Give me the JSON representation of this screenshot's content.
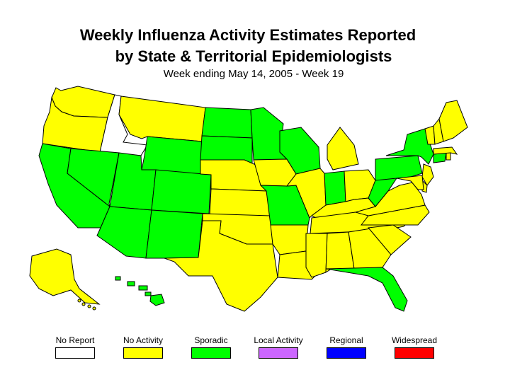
{
  "title": {
    "line1": "Weekly Influenza Activity Estimates Reported",
    "line2": "by State & Territorial Epidemiologists",
    "subtitle": "Week ending May 14, 2005 - Week 19"
  },
  "colors": {
    "no_report": "#ffffff",
    "no_activity": "#ffff00",
    "sporadic": "#00ff00",
    "local": "#cc66ff",
    "regional": "#0000ff",
    "widespread": "#ff0000",
    "border": "#000000"
  },
  "legend": [
    {
      "label": "No Report",
      "color": "#ffffff"
    },
    {
      "label": "No Activity",
      "color": "#ffff00"
    },
    {
      "label": "Sporadic",
      "color": "#00ff00"
    },
    {
      "label": "Local Activity",
      "color": "#cc66ff"
    },
    {
      "label": "Regional",
      "color": "#0000ff"
    },
    {
      "label": "Widespread",
      "color": "#ff0000"
    }
  ],
  "states": {
    "WA": "No Activity",
    "OR": "No Activity",
    "ID": "No Report",
    "MT": "No Activity",
    "CA": "Sporadic",
    "NV": "Sporadic",
    "UT": "Sporadic",
    "AZ": "Sporadic",
    "WY": "Sporadic",
    "CO": "Sporadic",
    "NM": "Sporadic",
    "ND": "Sporadic",
    "SD": "Sporadic",
    "NE": "No Activity",
    "KS": "No Activity",
    "OK": "No Activity",
    "TX": "No Activity",
    "MN": "Sporadic",
    "IA": "No Activity",
    "MO": "Sporadic",
    "AR": "No Activity",
    "LA": "No Activity",
    "WI": "Sporadic",
    "IL": "No Activity",
    "MI": "No Activity",
    "IN": "Sporadic",
    "OH": "No Activity",
    "KY": "No Activity",
    "TN": "No Activity",
    "MS": "No Activity",
    "AL": "No Activity",
    "GA": "No Activity",
    "FL": "Sporadic",
    "SC": "No Activity",
    "NC": "No Activity",
    "VA": "No Activity",
    "WV": "Sporadic",
    "PA": "Sporadic",
    "NY": "Sporadic",
    "NJ": "No Activity",
    "DE": "No Activity",
    "MD": "No Activity",
    "CT": "Sporadic",
    "RI": "No Activity",
    "MA": "No Activity",
    "VT": "No Activity",
    "NH": "No Activity",
    "ME": "No Activity",
    "AK": "No Activity",
    "HI": "Sporadic"
  }
}
